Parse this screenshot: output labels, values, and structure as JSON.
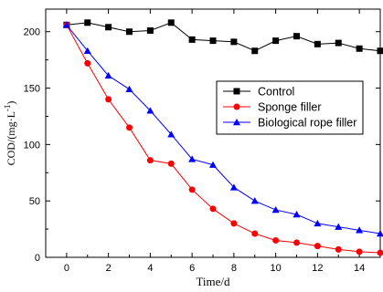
{
  "chart_data": {
    "type": "line",
    "xlabel": "Time/d",
    "ylabel": "COD/(mg·L",
    "ylabel_sup": "-1",
    "ylabel_end": ")",
    "xlim": [
      -1,
      15
    ],
    "ylim": [
      0,
      220
    ],
    "xticks": [
      "0",
      "2",
      "4",
      "6",
      "8",
      "10",
      "12",
      "14"
    ],
    "yticks": [
      "0",
      "50",
      "100",
      "150",
      "200"
    ],
    "legend_position": "right-middle",
    "series": [
      {
        "name": "Control",
        "color": "#000000",
        "marker": "square",
        "x": [
          0,
          1,
          2,
          3,
          4,
          5,
          6,
          7,
          8,
          9,
          10,
          11,
          12,
          13,
          14,
          15
        ],
        "values": [
          206,
          208,
          204,
          200,
          201,
          208,
          193,
          192,
          191,
          183,
          192,
          196,
          189,
          190,
          185,
          183
        ]
      },
      {
        "name": "Sponge filler",
        "color": "#ff0000",
        "marker": "circle",
        "x": [
          0,
          1,
          2,
          3,
          4,
          5,
          6,
          7,
          8,
          9,
          10,
          11,
          12,
          13,
          14,
          15
        ],
        "values": [
          206,
          172,
          140,
          115,
          86,
          83,
          60,
          43,
          30,
          21,
          15,
          13,
          10,
          7,
          5,
          4
        ]
      },
      {
        "name": "Biological rope filler",
        "color": "#0000ff",
        "marker": "triangle",
        "x": [
          0,
          1,
          2,
          3,
          4,
          5,
          6,
          7,
          8,
          9,
          10,
          11,
          12,
          13,
          14,
          15
        ],
        "values": [
          206,
          183,
          161,
          149,
          130,
          109,
          87,
          82,
          62,
          50,
          42,
          38,
          30,
          27,
          24,
          21
        ]
      }
    ]
  }
}
